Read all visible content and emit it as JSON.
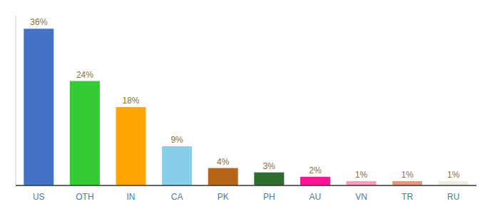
{
  "chart_data": {
    "type": "bar",
    "categories": [
      "US",
      "OTH",
      "IN",
      "CA",
      "PK",
      "PH",
      "AU",
      "VN",
      "TR",
      "RU"
    ],
    "values": [
      36,
      24,
      18,
      9,
      4,
      3,
      2,
      1,
      1,
      1
    ],
    "value_labels": [
      "36%",
      "24%",
      "18%",
      "9%",
      "4%",
      "3%",
      "2%",
      "1%",
      "1%",
      "1%"
    ],
    "colors": [
      "#4472c4",
      "#33cc33",
      "#ffa500",
      "#87ceeb",
      "#b8651a",
      "#2e6b2e",
      "#ff1493",
      "#ff99bb",
      "#e8967a",
      "#f0ede0"
    ],
    "ylim": [
      0,
      39
    ],
    "data_labels": true,
    "tick_labels": "x",
    "grid": false
  }
}
